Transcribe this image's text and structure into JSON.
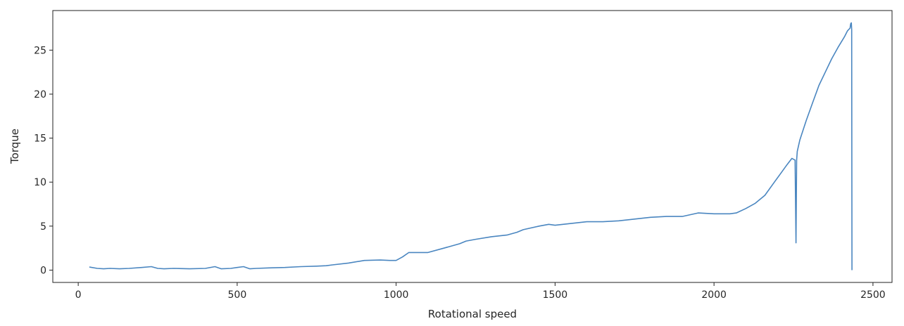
{
  "chart_data": {
    "type": "line",
    "title": "",
    "xlabel": "Rotational speed",
    "ylabel": "Torque",
    "xlim": [
      -80,
      2560
    ],
    "ylim": [
      -1.4,
      29.5
    ],
    "xticks": [
      0,
      500,
      1000,
      1500,
      2000,
      2500
    ],
    "yticks": [
      0,
      5,
      10,
      15,
      20,
      25
    ],
    "grid": false,
    "legend": "none",
    "line_color": "#4a86c0",
    "series": [
      {
        "x": [
          35,
          60,
          80,
          100,
          130,
          160,
          200,
          230,
          250,
          270,
          300,
          350,
          400,
          430,
          450,
          480,
          500,
          520,
          540,
          560,
          600,
          650,
          700,
          750,
          780,
          800,
          850,
          900,
          950,
          980,
          1000,
          1020,
          1040,
          1060,
          1100,
          1150,
          1200,
          1220,
          1250,
          1300,
          1350,
          1380,
          1400,
          1450,
          1480,
          1500,
          1550,
          1600,
          1650,
          1700,
          1750,
          1800,
          1850,
          1900,
          1950,
          2000,
          2050,
          2070,
          2100,
          2130,
          2160,
          2190,
          2210,
          2230,
          2245,
          2255,
          2258,
          2260,
          2262,
          2270,
          2290,
          2310,
          2330,
          2350,
          2370,
          2390,
          2410,
          2420,
          2428,
          2430,
          2432,
          2433,
          2434
        ],
        "y": [
          0.35,
          0.2,
          0.15,
          0.2,
          0.15,
          0.2,
          0.3,
          0.4,
          0.2,
          0.15,
          0.2,
          0.15,
          0.2,
          0.4,
          0.15,
          0.2,
          0.3,
          0.4,
          0.15,
          0.2,
          0.25,
          0.3,
          0.4,
          0.45,
          0.5,
          0.6,
          0.8,
          1.1,
          1.15,
          1.1,
          1.1,
          1.5,
          2.0,
          2.0,
          2.0,
          2.5,
          3.0,
          3.3,
          3.5,
          3.8,
          4.0,
          4.3,
          4.6,
          5.0,
          5.2,
          5.1,
          5.3,
          5.5,
          5.5,
          5.6,
          5.8,
          6.0,
          6.1,
          6.1,
          6.5,
          6.4,
          6.4,
          6.5,
          7.0,
          7.6,
          8.5,
          10.0,
          11.0,
          12.0,
          12.7,
          12.5,
          3.1,
          12.5,
          13.5,
          14.8,
          17.0,
          19.0,
          21.0,
          22.5,
          24.0,
          25.3,
          26.5,
          27.2,
          27.5,
          28.0,
          28.1,
          27.3,
          0.0
        ]
      }
    ]
  }
}
